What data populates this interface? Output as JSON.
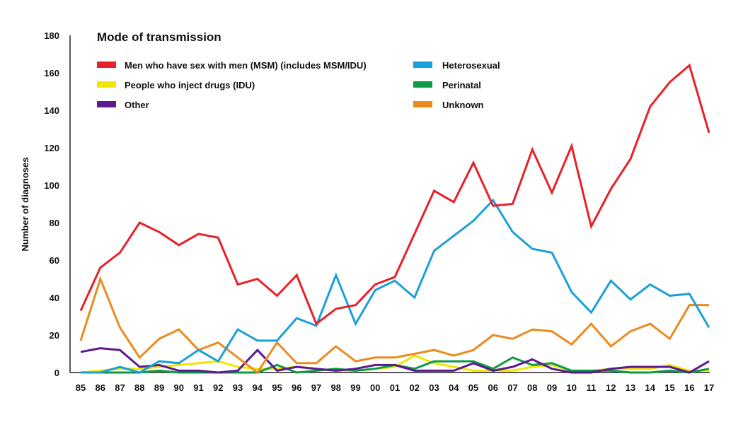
{
  "chart_data": {
    "type": "line",
    "title": "Mode of transmission",
    "xlabel": "",
    "ylabel": "Number of diagnoses",
    "ylim": [
      0,
      180
    ],
    "yticks": [
      0,
      20,
      40,
      60,
      80,
      100,
      120,
      140,
      160,
      180
    ],
    "categories": [
      "85",
      "86",
      "87",
      "88",
      "89",
      "90",
      "91",
      "92",
      "93",
      "94",
      "95",
      "96",
      "97",
      "98",
      "99",
      "00",
      "01",
      "02",
      "03",
      "04",
      "05",
      "06",
      "07",
      "08",
      "09",
      "10",
      "11",
      "12",
      "13",
      "14",
      "15",
      "16",
      "17"
    ],
    "legend_position": "top",
    "series": [
      {
        "name": "Men who have sex with men (MSM) (includes MSM/IDU)",
        "color": "#e8202a",
        "values": [
          33,
          56,
          64,
          80,
          75,
          68,
          74,
          72,
          47,
          50,
          41,
          52,
          26,
          34,
          36,
          47,
          51,
          74,
          97,
          91,
          112,
          89,
          90,
          119,
          96,
          121,
          78,
          98,
          114,
          142,
          155,
          164,
          128
        ]
      },
      {
        "name": "People who inject drugs (IDU)",
        "color": "#f2e600",
        "values": [
          0,
          1,
          2,
          2,
          3,
          4,
          5,
          6,
          3,
          2,
          2,
          3,
          2,
          1,
          1,
          2,
          3,
          9,
          5,
          3,
          1,
          1,
          1,
          3,
          4,
          1,
          1,
          2,
          2,
          2,
          4,
          1,
          1
        ]
      },
      {
        "name": "Other",
        "color": "#5b1a8e",
        "values": [
          11,
          13,
          12,
          3,
          4,
          1,
          1,
          0,
          1,
          12,
          1,
          3,
          2,
          1,
          2,
          4,
          4,
          1,
          1,
          1,
          5,
          1,
          3,
          7,
          2,
          0,
          0,
          2,
          3,
          3,
          3,
          0,
          6
        ]
      },
      {
        "name": "Heterosexual",
        "color": "#1aa0d8",
        "values": [
          0,
          0,
          3,
          0,
          6,
          5,
          12,
          6,
          23,
          17,
          17,
          29,
          25,
          52,
          26,
          44,
          49,
          40,
          65,
          73,
          81,
          92,
          75,
          66,
          64,
          43,
          32,
          49,
          39,
          47,
          41,
          42,
          24
        ]
      },
      {
        "name": "Perinatal",
        "color": "#0f9a45",
        "values": [
          0,
          0,
          0,
          0,
          1,
          0,
          0,
          0,
          0,
          0,
          4,
          0,
          1,
          2,
          1,
          2,
          4,
          2,
          6,
          6,
          6,
          2,
          8,
          4,
          5,
          1,
          1,
          1,
          0,
          0,
          1,
          0,
          2
        ]
      },
      {
        "name": "Unknown",
        "color": "#ec8a1e",
        "values": [
          17,
          50,
          24,
          8,
          18,
          23,
          12,
          16,
          8,
          0,
          16,
          5,
          5,
          14,
          6,
          8,
          8,
          10,
          12,
          9,
          12,
          20,
          18,
          23,
          22,
          15,
          26,
          14,
          22,
          26,
          18,
          36,
          36
        ]
      }
    ]
  }
}
